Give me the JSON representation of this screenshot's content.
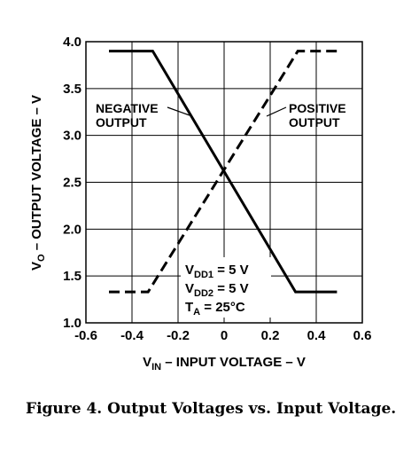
{
  "chart_data": {
    "type": "line",
    "xlabel": "V_IN – INPUT VOLTAGE – V",
    "xlabel_parts": {
      "main": "V",
      "sub": "IN",
      "rest": " – INPUT VOLTAGE – V"
    },
    "ylabel": "V_O – OUTPUT VOLTAGE – V",
    "ylabel_parts": {
      "main": "V",
      "sub": "O",
      "rest": " – OUTPUT VOLTAGE – V"
    },
    "xlim": [
      -0.6,
      0.6
    ],
    "ylim": [
      1.0,
      4.0
    ],
    "x_ticks": [
      -0.6,
      -0.4,
      -0.2,
      0,
      0.2,
      0.4,
      0.6
    ],
    "x_tick_labels": [
      "-0.6",
      "-0.4",
      "-0.2",
      "0",
      "0.2",
      "0.4",
      "0.6"
    ],
    "y_ticks": [
      1.0,
      1.5,
      2.0,
      2.5,
      3.0,
      3.5,
      4.0
    ],
    "y_tick_labels": [
      "1.0",
      "1.5",
      "2.0",
      "2.5",
      "3.0",
      "3.5",
      "4.0"
    ],
    "grid": true,
    "series": [
      {
        "name": "NEGATIVE OUTPUT",
        "label_lines": [
          "NEGATIVE",
          "OUTPUT"
        ],
        "style": "solid",
        "points": [
          [
            -0.5,
            3.9
          ],
          [
            -0.31,
            3.9
          ],
          [
            0.31,
            1.33
          ],
          [
            0.49,
            1.33
          ]
        ]
      },
      {
        "name": "POSITIVE OUTPUT",
        "label_lines": [
          "POSITIVE",
          "OUTPUT"
        ],
        "style": "dashed",
        "points": [
          [
            -0.5,
            1.33
          ],
          [
            -0.33,
            1.33
          ],
          [
            0.32,
            3.9
          ],
          [
            0.5,
            3.9
          ]
        ]
      }
    ],
    "conditions": [
      {
        "main": "V",
        "sub": "DD1",
        "rest": " = 5 V"
      },
      {
        "main": "V",
        "sub": "DD2",
        "rest": " = 5 V"
      },
      {
        "main": "T",
        "sub": "A",
        "rest": " = 25°C"
      }
    ]
  },
  "caption": "Figure 4. Output Voltages vs. Input Voltage."
}
